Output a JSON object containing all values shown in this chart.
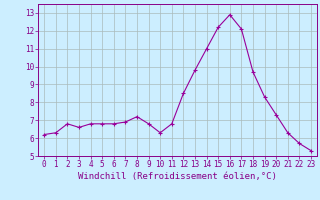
{
  "x": [
    0,
    1,
    2,
    3,
    4,
    5,
    6,
    7,
    8,
    9,
    10,
    11,
    12,
    13,
    14,
    15,
    16,
    17,
    18,
    19,
    20,
    21,
    22,
    23
  ],
  "y": [
    6.2,
    6.3,
    6.8,
    6.6,
    6.8,
    6.8,
    6.8,
    6.9,
    7.2,
    6.8,
    6.3,
    6.8,
    8.5,
    9.8,
    11.0,
    12.2,
    12.9,
    12.1,
    9.7,
    8.3,
    7.3,
    6.3,
    5.7,
    5.3
  ],
  "line_color": "#990099",
  "marker": "+",
  "marker_size": 3,
  "marker_linewidth": 0.8,
  "bg_color": "#cceeff",
  "grid_color": "#aabbbb",
  "xlabel": "Windchill (Refroidissement éolien,°C)",
  "ylabel": "",
  "ylim": [
    5,
    13.5
  ],
  "xlim": [
    -0.5,
    23.5
  ],
  "yticks": [
    5,
    6,
    7,
    8,
    9,
    10,
    11,
    12,
    13
  ],
  "xticks": [
    0,
    1,
    2,
    3,
    4,
    5,
    6,
    7,
    8,
    9,
    10,
    11,
    12,
    13,
    14,
    15,
    16,
    17,
    18,
    19,
    20,
    21,
    22,
    23
  ],
  "tick_fontsize": 5.5,
  "xlabel_fontsize": 6.5,
  "label_color": "#880088"
}
